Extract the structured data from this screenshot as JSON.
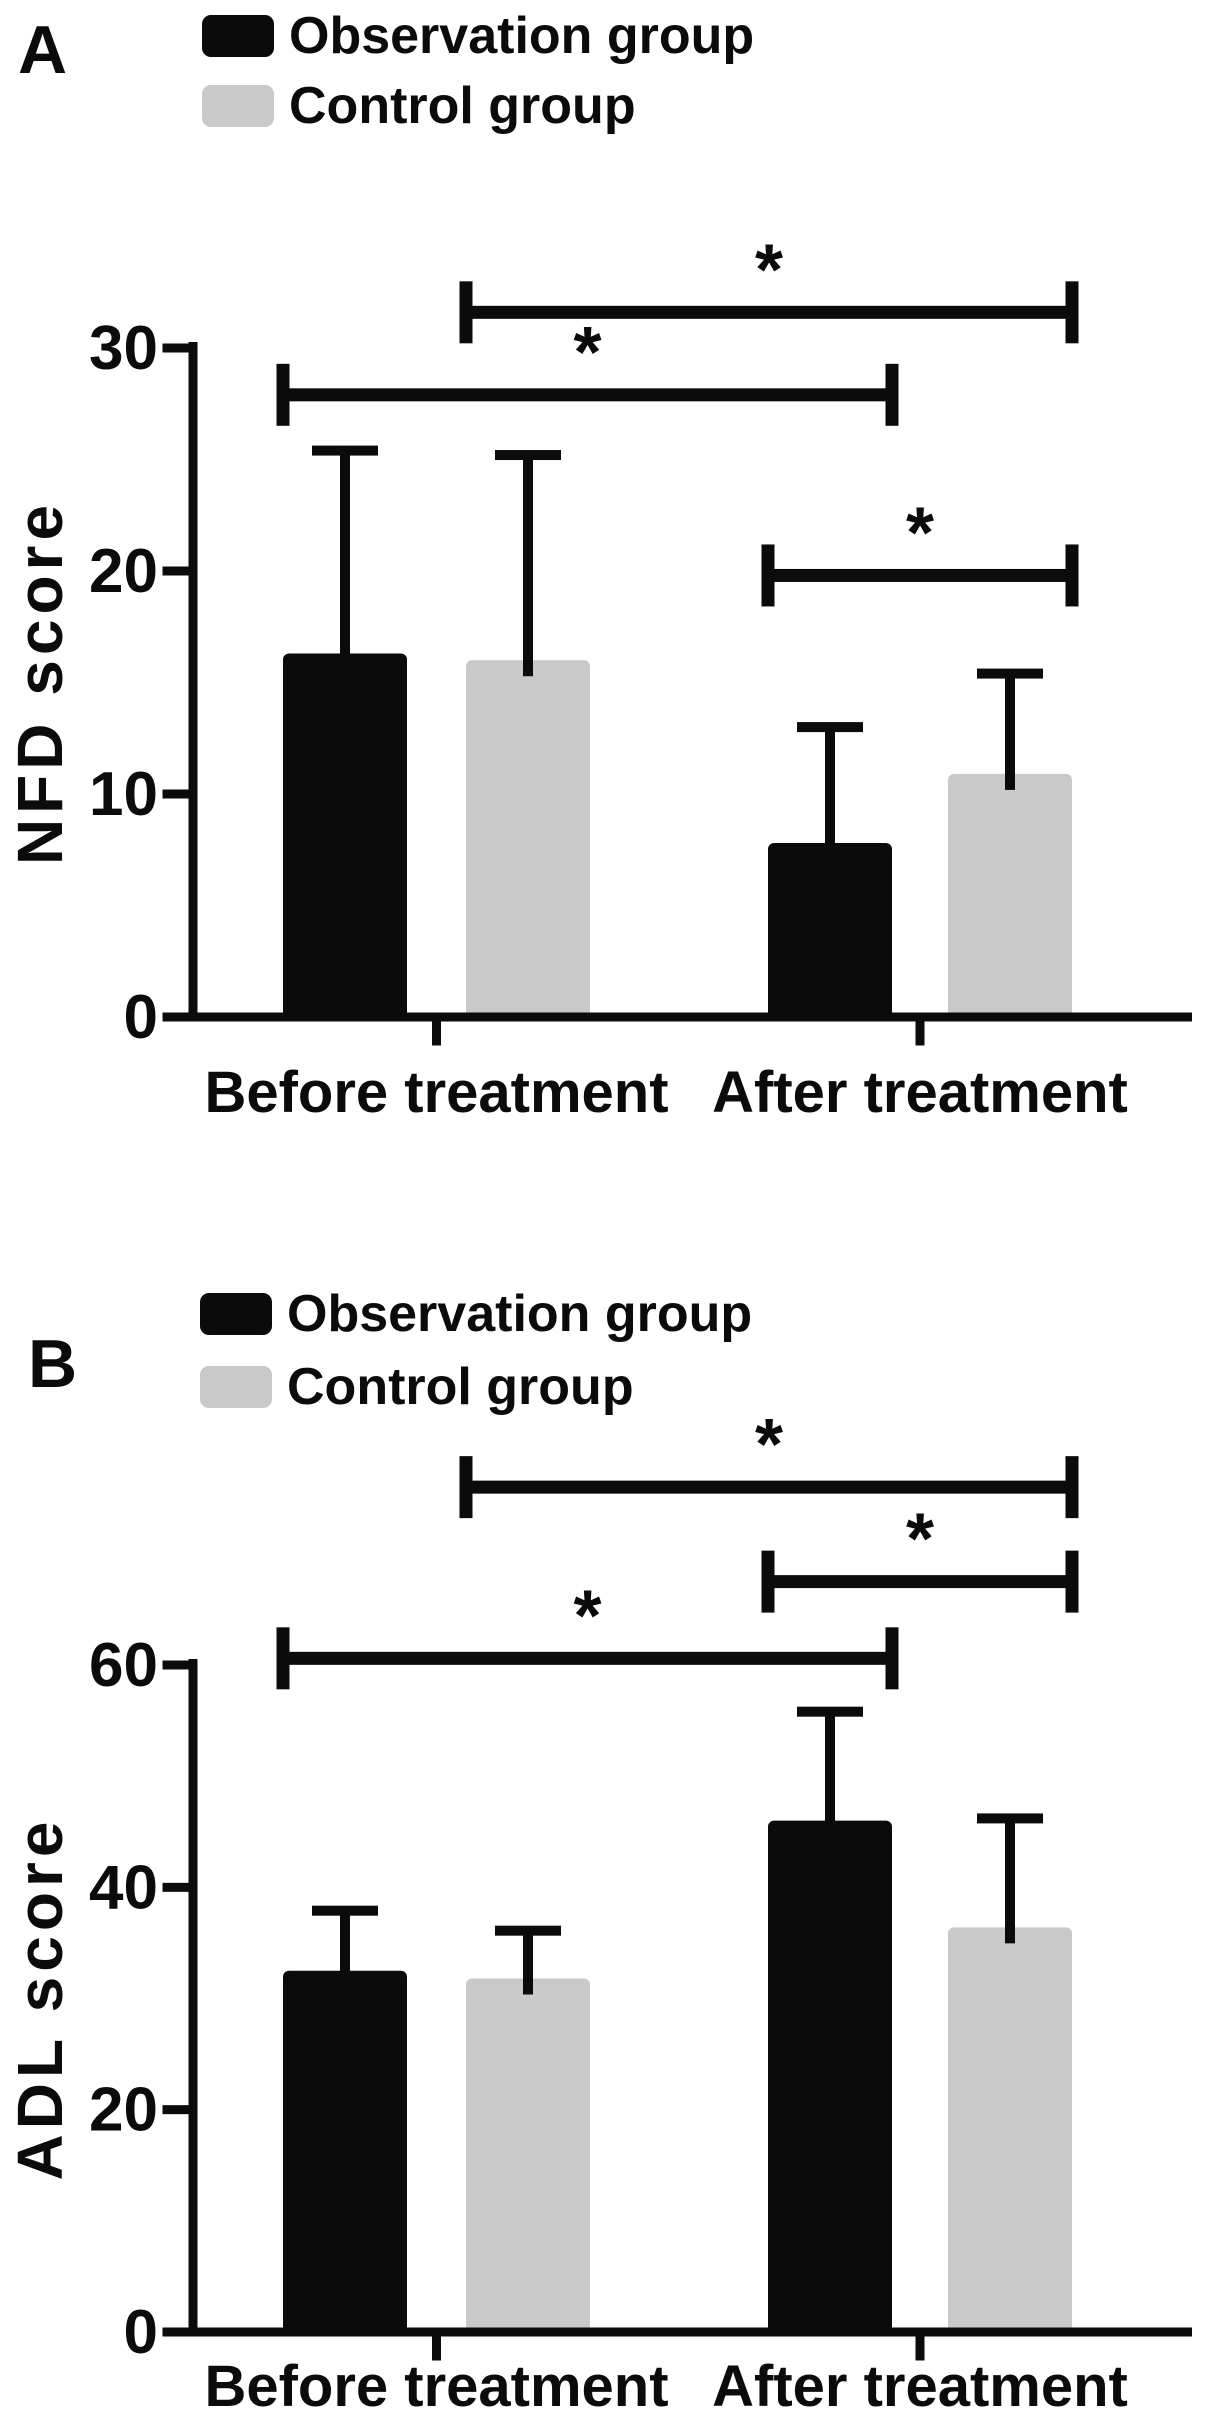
{
  "figure": {
    "background": "#ffffff",
    "text_color": "#0b0b0b",
    "bar_black": "#0b0b0b",
    "bar_gray": "#c9c9c9"
  },
  "chart_data": [
    {
      "type": "bar",
      "panel_label": "A",
      "ylabel": "NFD score",
      "xlabel": "",
      "categories": [
        "Before treatment",
        "After treatment"
      ],
      "series": [
        {
          "name": "Observation group",
          "color": "#0b0b0b",
          "values": [
            16.3,
            7.8
          ],
          "error_up": [
            9.1,
            5.2
          ]
        },
        {
          "name": "Control group",
          "color": "#c9c9c9",
          "values": [
            16.0,
            10.9
          ],
          "error_up": [
            9.2,
            4.5
          ]
        }
      ],
      "ylim": [
        0,
        30
      ],
      "yticks": [
        0,
        10,
        20,
        30
      ],
      "grid": false,
      "legend_position": "top-left",
      "significance": [
        {
          "from": "control-before",
          "to": "control-after",
          "y": 31.6,
          "label": "*"
        },
        {
          "from": "observation-before",
          "to": "observation-after",
          "y": 27.9,
          "label": "*"
        },
        {
          "from": "observation-after",
          "to": "control-after",
          "y": 19.8,
          "label": "*"
        }
      ]
    },
    {
      "type": "bar",
      "panel_label": "B",
      "ylabel": "ADL score",
      "xlabel": "",
      "categories": [
        "Before treatment",
        "After treatment"
      ],
      "series": [
        {
          "name": "Observation group",
          "color": "#0b0b0b",
          "values": [
            32.5,
            46.0
          ],
          "error_up": [
            5.4,
            9.8
          ]
        },
        {
          "name": "Control group",
          "color": "#c9c9c9",
          "values": [
            31.8,
            36.4
          ],
          "error_up": [
            4.3,
            9.8
          ]
        }
      ],
      "ylim": [
        0,
        60
      ],
      "yticks": [
        0,
        20,
        40,
        60
      ],
      "grid": false,
      "legend_position": "top-left",
      "significance": [
        {
          "from": "control-before",
          "to": "control-after",
          "y": 76.0,
          "label": "*"
        },
        {
          "from": "observation-after",
          "to": "control-after",
          "y": 67.5,
          "label": "*"
        },
        {
          "from": "observation-before",
          "to": "observation-after",
          "y": 60.6,
          "label": "*"
        }
      ]
    }
  ]
}
